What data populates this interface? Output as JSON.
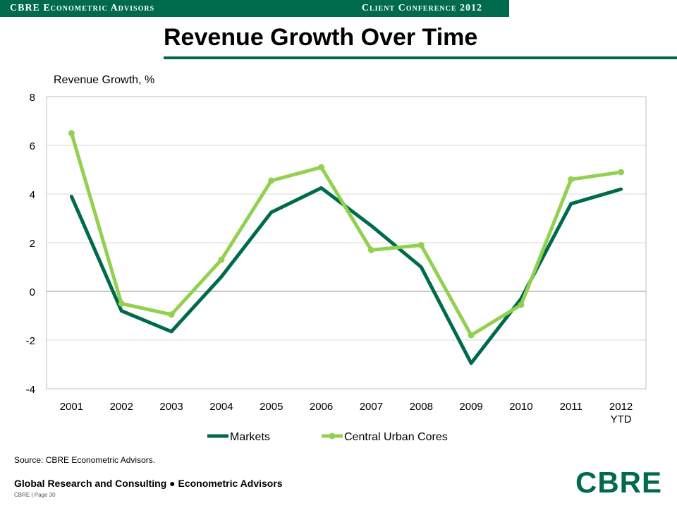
{
  "header": {
    "left_label": "CBRE Econometric Advisors",
    "right_label": "Client Conference 2012"
  },
  "page_title": "Revenue Growth Over Time",
  "colors": {
    "brand": "#006A4D",
    "markets": "#006A4D",
    "cores": "#92D050",
    "grid": "#D9D9D9"
  },
  "chart_data": {
    "type": "line",
    "ylabel": "Revenue Growth, %",
    "categories": [
      "2001",
      "2002",
      "2003",
      "2004",
      "2005",
      "2006",
      "2007",
      "2008",
      "2009",
      "2010",
      "2011",
      "2012 YTD"
    ],
    "ylim": [
      -4,
      8
    ],
    "yticks": [
      8,
      6,
      4,
      2,
      0,
      -2,
      -4
    ],
    "grid": true,
    "legend_position": "bottom",
    "series": [
      {
        "name": "Markets",
        "values": [
          3.9,
          -0.8,
          -1.65,
          0.6,
          3.25,
          4.25,
          2.7,
          1.0,
          -2.95,
          -0.3,
          3.6,
          4.2
        ]
      },
      {
        "name": "Central Urban Cores",
        "values": [
          6.5,
          -0.5,
          -0.95,
          1.3,
          4.55,
          5.1,
          1.7,
          1.9,
          -1.8,
          -0.55,
          4.6,
          4.9
        ]
      }
    ]
  },
  "source": "Source: CBRE Econometric Advisors.",
  "footer": {
    "line1": "Global Research and Consulting ● Econometric Advisors",
    "line2": "CBRE | Page 30"
  },
  "logo_text": "CBRE"
}
